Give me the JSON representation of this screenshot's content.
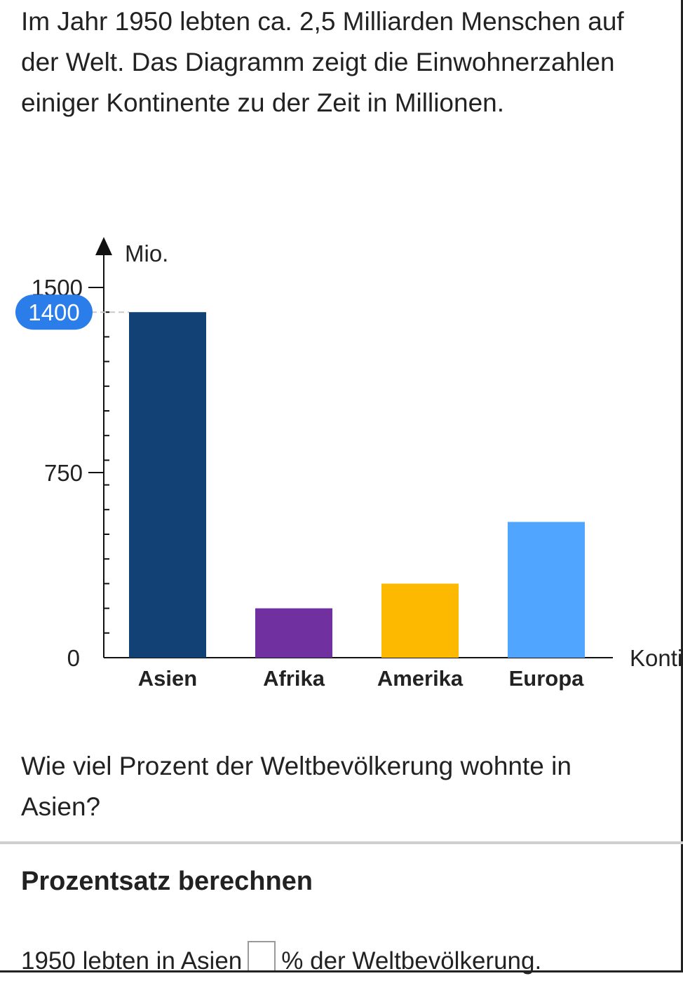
{
  "intro": {
    "text": "Im Jahr 1950 lebten ca. 2,5 Milliarden Menschen auf der Welt. Das Diagramm zeigt die Einwohnerzahlen einiger Kontinente zu der Zeit in Millionen."
  },
  "chart_data": {
    "type": "bar",
    "title": "",
    "ylabel": "Mio.",
    "xlabel": "Konti",
    "ylim": [
      0,
      1500
    ],
    "y_ticks": [
      0,
      750,
      1500
    ],
    "highlight_label": "1400",
    "highlight_value": 1400,
    "categories": [
      "Asien",
      "Afrika",
      "Amerika",
      "Europa"
    ],
    "values": [
      1400,
      200,
      300,
      550
    ],
    "colors": [
      "#124275",
      "#7030a0",
      "#fcb900",
      "#50a6ff"
    ]
  },
  "question": {
    "text": "Wie viel Prozent der Weltbevölkerung wohnte in Asien?"
  },
  "section": {
    "title": "Prozentsatz berechnen"
  },
  "answer": {
    "prefix": "1950 lebten in Asien",
    "suffix": "% der Weltbevölkerung."
  }
}
